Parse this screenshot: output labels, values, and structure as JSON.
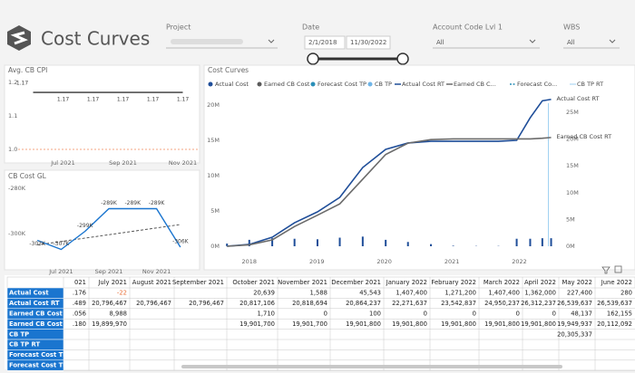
{
  "header": {
    "title": "Cost Curves"
  },
  "filters": {
    "project": {
      "label": "Project"
    },
    "date": {
      "label": "Date",
      "start": "2/1/2018",
      "end": "11/30/2022"
    },
    "account": {
      "label": "Account Code Lvl 1",
      "value": "All"
    },
    "wbs": {
      "label": "WBS",
      "value": "All"
    }
  },
  "chart_data": [
    {
      "type": "line",
      "title": "Avg. CB CPI",
      "categories": [
        null,
        "Jul 2021",
        null,
        "Sep 2021",
        null,
        "Nov 2021"
      ],
      "values": [
        1.17,
        1.17,
        1.17,
        1.17,
        1.17,
        1.17
      ],
      "color": "#333333",
      "target": 1,
      "target_color": "#f4a582",
      "ylim": [
        0.981,
        1.216
      ],
      "yticks": [
        {
          "value": 1,
          "label": "1.0"
        },
        1.1,
        1.2
      ]
    },
    {
      "type": "line",
      "title": "CB Cost GL",
      "categories": [
        null,
        "Jul 2021",
        null,
        "Sep 2021",
        null,
        "Nov 2021",
        null
      ],
      "values": [
        -303000,
        -307000,
        -299000,
        -289000,
        -289000,
        -289000,
        -306000
      ],
      "value_labels": [
        "-303K",
        "-307K",
        "-299K",
        "-289K",
        "-289K",
        "-289K",
        "-306K"
      ],
      "color": "#1a75cf",
      "trend_values": [
        -305000,
        -296000
      ],
      "trend_color": "#555555",
      "ylim": [
        -313600,
        -276800
      ],
      "yticks": [
        {
          "value": -280000,
          "label": "-280K"
        },
        {
          "value": -300000,
          "label": "-300K"
        }
      ]
    },
    {
      "type": "combo",
      "title": "Cost Curves",
      "x": [
        2017.67,
        2018.0,
        2018.34,
        2018.67,
        2019.01,
        2019.34,
        2019.68,
        2020.02,
        2020.35,
        2020.69,
        2021.02,
        2021.36,
        2021.69,
        2021.96,
        2022.16,
        2022.34,
        2022.47
      ],
      "xlim": [
        2017.64,
        2022.53
      ],
      "xticks": [
        2018,
        2019,
        2020,
        2021,
        2022
      ],
      "ylim": [
        0,
        20770000
      ],
      "yticks": [
        {
          "value": 0,
          "label": "0M"
        },
        {
          "value": 5000000,
          "label": "5M"
        },
        {
          "value": 10000000,
          "label": "10M"
        },
        {
          "value": 15000000,
          "label": "15M"
        },
        {
          "value": 20000000,
          "label": "20M"
        }
      ],
      "y2lim": [
        0,
        27360000
      ],
      "y2ticks": [
        {
          "value": 0,
          "label": "0M"
        },
        {
          "value": 5000000,
          "label": "5M"
        },
        {
          "value": 10000000,
          "label": "10M"
        },
        {
          "value": 15000000,
          "label": "15M"
        },
        {
          "value": 20000000,
          "label": "20M"
        },
        {
          "value": 25000000,
          "label": "25M"
        }
      ],
      "series": [
        {
          "name": "Actual Cost",
          "color": "#1f4e99",
          "mark": "bar",
          "axis": "y2",
          "values": [
            500000,
            1200000,
            1500000,
            1400000,
            1300000,
            1600000,
            1800000,
            1200000,
            800000,
            400000,
            100000,
            50000,
            50000,
            1400000,
            1400000,
            1500000,
            1500000
          ]
        },
        {
          "name": "Earned CB Cost",
          "color": "#5a5a5a",
          "mark": "dot"
        },
        {
          "name": "Forecast Cost TP",
          "color": "#2b8fb8",
          "mark": "dot"
        },
        {
          "name": "CB TP",
          "color": "#6fb5e8",
          "mark": "dot"
        },
        {
          "name": "Actual Cost RT",
          "color": "#1f4e99",
          "mark": "line",
          "values": [
            0,
            260000,
            1280000,
            3330000,
            4870000,
            6920000,
            11150000,
            13720000,
            14620000,
            14870000,
            14870000,
            14870000,
            14870000,
            15000000,
            18200000,
            20600000,
            20800000
          ]
        },
        {
          "name": "Earned CB C...",
          "color": "#6b6b6b",
          "mark": "line",
          "values": [
            0,
            200000,
            900000,
            2800000,
            4400000,
            6000000,
            9500000,
            13000000,
            14600000,
            15100000,
            15200000,
            15200000,
            15200000,
            15200000,
            15200000,
            15300000,
            15400000
          ]
        },
        {
          "name": "Forecast Co...",
          "color": "#2b8fb8",
          "mark": "dash"
        },
        {
          "name": "CB TP RT",
          "color": "#9dcff2",
          "mark": "vline",
          "vline_x": 2022.43
        }
      ],
      "annotations": [
        {
          "text": "Actual Cost RT",
          "series": 4
        },
        {
          "text": "Earned CB Cost RT",
          "series": 5
        }
      ]
    }
  ],
  "table": {
    "negative_color": "#e8703a",
    "columns": [
      "021",
      "July 2021",
      "August 2021",
      "September 2021",
      "October 2021",
      "November 2021",
      "December 2021",
      "January 2022",
      "February 2022",
      "March 2022",
      "April 2022",
      "May 2022",
      "June 2022"
    ],
    "rows": [
      {
        "label": "Actual Cost",
        "cells": [
          ".176",
          "-22",
          null,
          null,
          "20,639",
          "1,588",
          "45,543",
          "1,407,400",
          "1,271,200",
          "1,407,400",
          "1,362,000",
          "227,400",
          "280"
        ]
      },
      {
        "label": "Actual Cost RT",
        "cells": [
          ".489",
          "20,796,467",
          "20,796,467",
          "20,796,467",
          "20,817,106",
          "20,818,694",
          "20,864,237",
          "22,271,637",
          "23,542,837",
          "24,950,237",
          "26,312,237",
          "26,539,637",
          "26,539,637"
        ]
      },
      {
        "label": "Earned CB Cost",
        "cells": [
          ".056",
          "8,988",
          null,
          null,
          "1,710",
          "0",
          "100",
          "0",
          "0",
          "0",
          "0",
          "48,137",
          "162,155"
        ]
      },
      {
        "label": "Earned CB Cost RT",
        "cells": [
          ".180",
          "19,899,970",
          null,
          null,
          "19,901,700",
          "19,901,700",
          "19,901,800",
          "19,901,800",
          "19,901,800",
          "19,901,800",
          "19,901,800",
          "19,949,937",
          "20,112,092"
        ]
      },
      {
        "label": "CB TP",
        "cells": [
          null,
          null,
          null,
          null,
          null,
          null,
          null,
          null,
          null,
          null,
          null,
          "20,305,337",
          null
        ]
      },
      {
        "label": "CB TP RT",
        "cells": [
          null,
          null,
          null,
          null,
          null,
          null,
          null,
          null,
          null,
          null,
          null,
          null,
          null
        ]
      },
      {
        "label": "Forecast Cost TP",
        "cells": [
          null,
          null,
          null,
          null,
          null,
          null,
          null,
          null,
          null,
          null,
          null,
          null,
          null
        ]
      },
      {
        "label": "Forecast Cost TP RT",
        "cells": [
          null,
          null,
          null,
          null,
          null,
          null,
          null,
          null,
          null,
          null,
          null,
          null,
          null
        ]
      }
    ]
  }
}
